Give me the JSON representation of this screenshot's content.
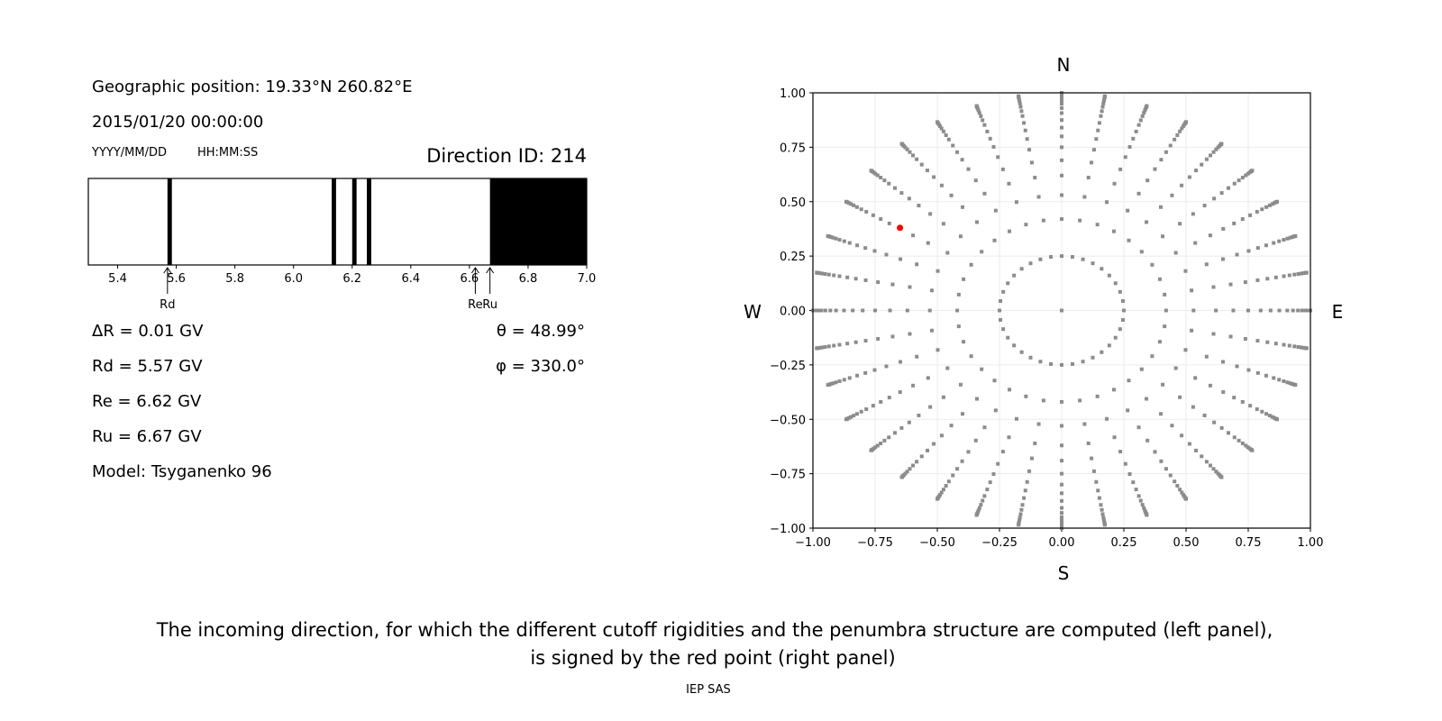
{
  "left_panel": {
    "position_text": "Geographic position: 19.33°N 260.82°E",
    "datetime_text": "2015/01/20 00:00:00",
    "date_format": "YYYY/MM/DD",
    "time_format": "HH:MM:SS",
    "direction_id": "Direction ID: 214",
    "delta_r": "ΔR = 0.01 GV",
    "rd": "Rd = 5.57 GV",
    "re": "Re = 6.62 GV",
    "ru": "Ru = 6.67 GV",
    "model": "Model: Tsyganenko 96",
    "theta": "θ = 48.99°",
    "phi": "φ = 330.0°"
  },
  "caption": {
    "line1": "The incoming direction, for which the different cutoff rigidities and the penumbra structure are computed (left panel),",
    "line2": "is signed by the red point (right panel)",
    "credit": "IEP SAS"
  },
  "chart_data": [
    {
      "type": "bar",
      "description_kind": "penumbra",
      "xlim": [
        5.3,
        7.0
      ],
      "xticks": [
        "5.4",
        "5.6",
        "5.8",
        "6.0",
        "6.2",
        "6.4",
        "6.6",
        "6.8",
        "7.0"
      ],
      "forbidden_intervals": [
        [
          5.57,
          5.585
        ],
        [
          6.13,
          6.145
        ],
        [
          6.2,
          6.215
        ],
        [
          6.25,
          6.265
        ],
        [
          6.67,
          7.0
        ]
      ],
      "colors": {
        "forbidden": "#000000",
        "allowed": "#ffffff"
      },
      "markers": [
        {
          "label": "Rd",
          "value": 5.57
        },
        {
          "label": "Re",
          "value": 6.62
        },
        {
          "label": "Ru",
          "value": 6.67
        }
      ]
    },
    {
      "type": "scatter",
      "xlim": [
        -1.0,
        1.0
      ],
      "ylim": [
        -1.0,
        1.0
      ],
      "grid": true,
      "xticks": [
        "−1.00",
        "−0.75",
        "−0.50",
        "−0.25",
        "0.00",
        "0.25",
        "0.50",
        "0.75",
        "1.00"
      ],
      "yticks": [
        "1.00",
        "0.75",
        "0.50",
        "0.25",
        "0.00",
        "−0.25",
        "−0.50",
        "−0.75",
        "−1.00"
      ],
      "compass": {
        "n": "N",
        "s": "S",
        "e": "E",
        "w": "W"
      },
      "grid_points": {
        "azimuth_step_deg": 10,
        "radii": [
          0.25,
          0.42,
          0.53,
          0.62,
          0.69,
          0.75,
          0.8,
          0.84,
          0.875,
          0.907,
          0.93,
          0.95,
          0.966,
          0.978,
          0.987,
          0.994,
          0.998,
          1.0
        ],
        "center_point": [
          0,
          0
        ],
        "color": "#8c8c8c"
      },
      "selected_point": {
        "x": -0.65,
        "y": 0.38,
        "color": "#ff0000"
      }
    }
  ]
}
